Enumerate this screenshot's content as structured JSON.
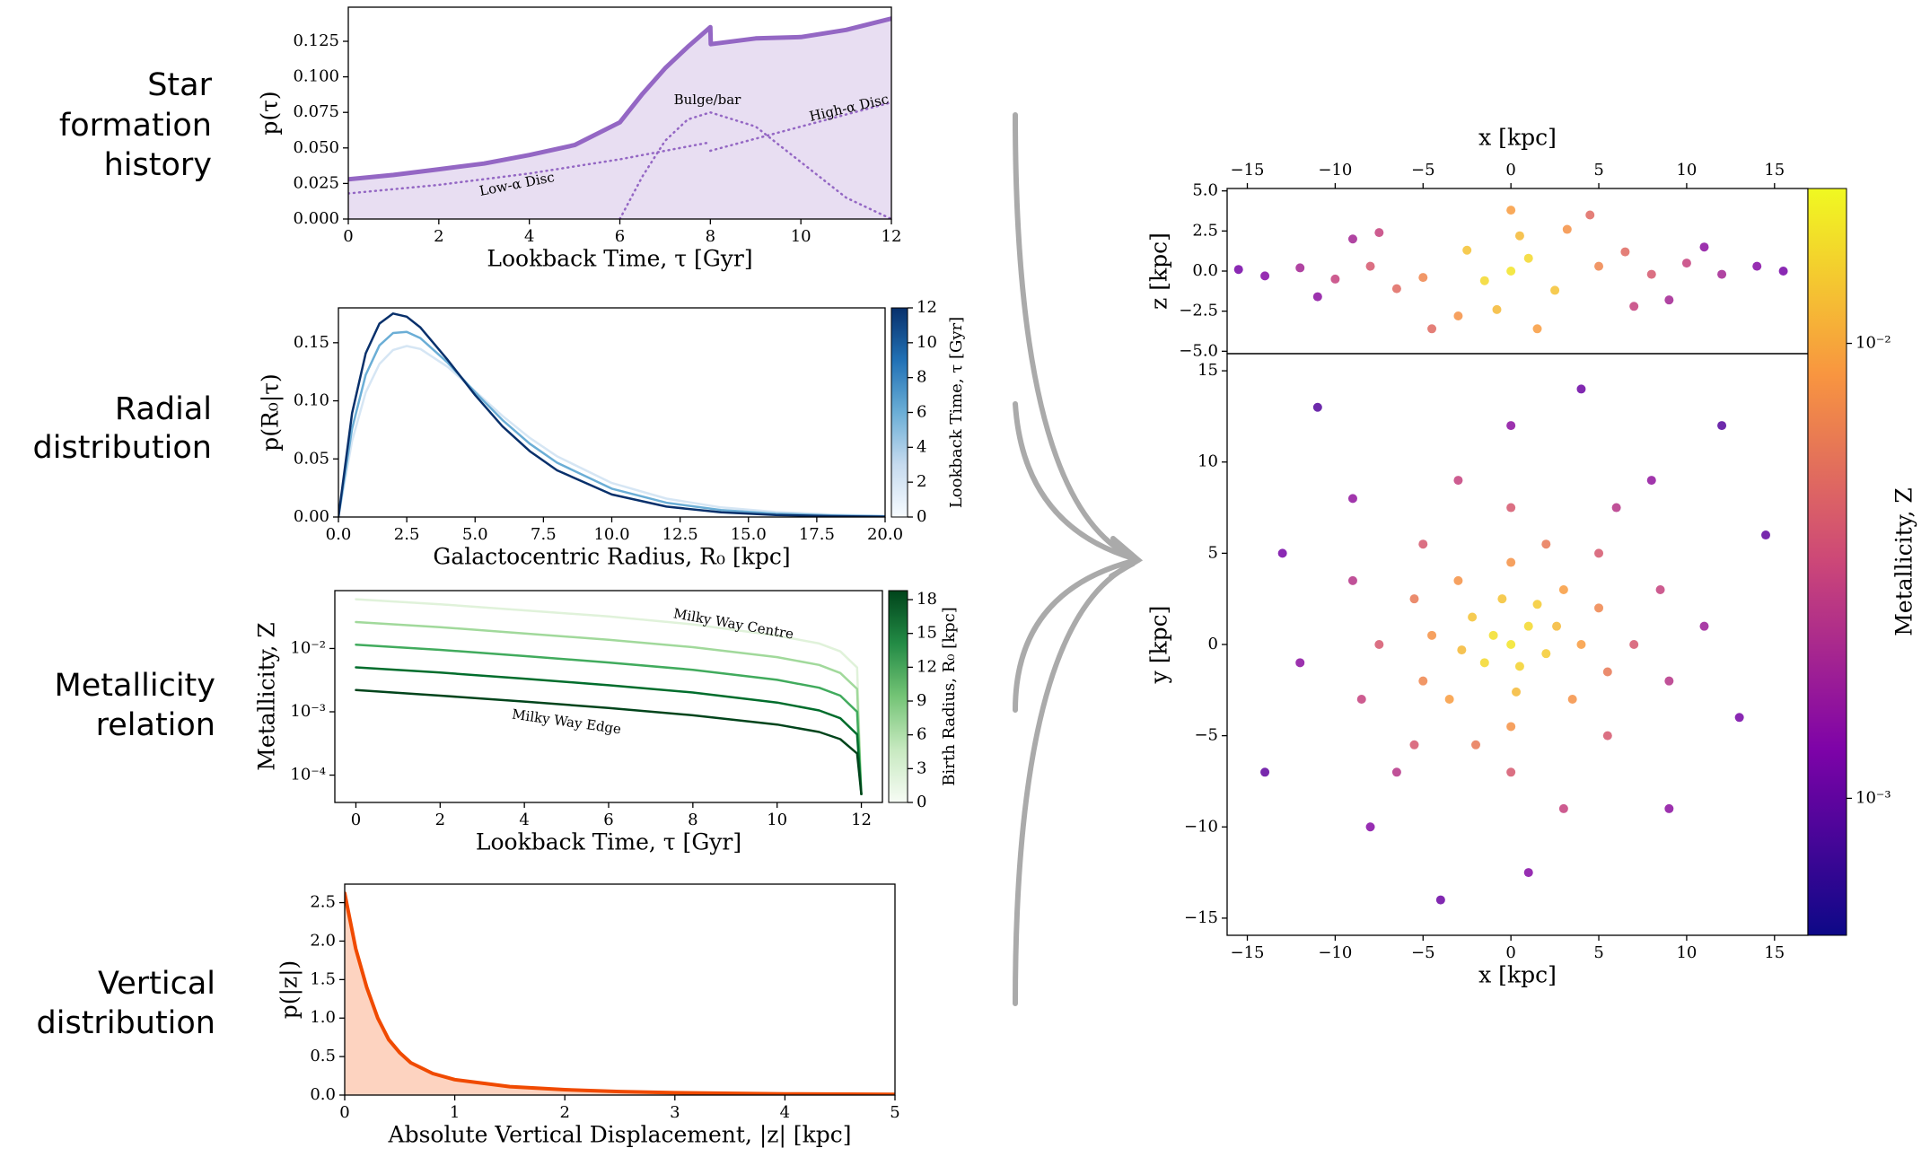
{
  "row_labels": [
    [
      "Star",
      "formation",
      "history"
    ],
    [
      "Radial",
      "distribution"
    ],
    [
      "Metallicity",
      "relation"
    ],
    [
      "Vertical",
      "distribution"
    ]
  ],
  "chart_data": [
    {
      "type": "line",
      "xlabel": "Lookback Time, τ [Gyr]",
      "ylabel": "p(τ)",
      "xlim": [
        0,
        12
      ],
      "xticks": [
        0,
        2,
        4,
        6,
        8,
        10,
        12
      ],
      "ylim": [
        0,
        0.149
      ],
      "yticks": [
        {
          "value": 0,
          "label": "0.000"
        },
        {
          "value": 0.025,
          "label": "0.025"
        },
        {
          "value": 0.05,
          "label": "0.050"
        },
        {
          "value": 0.075,
          "label": "0.075"
        },
        {
          "value": 0.1,
          "label": "0.100"
        },
        {
          "value": 0.125,
          "label": "0.125"
        }
      ],
      "annotations": [
        "Low-α Disc",
        "Bulge/bar",
        "High-α Disc"
      ],
      "series": [
        {
          "x": [
            0,
            1,
            2,
            3,
            4,
            5,
            6,
            6.5,
            7,
            7.5,
            8,
            8.01,
            9,
            10,
            11,
            12
          ],
          "values": [
            0.028,
            0.031,
            0.035,
            0.039,
            0.045,
            0.052,
            0.068,
            0.088,
            0.106,
            0.121,
            0.135,
            0.123,
            0.127,
            0.128,
            0.133,
            0.141
          ],
          "color": "#9467c4",
          "width": 5,
          "fill": "#e8def2"
        },
        {
          "x": [
            0,
            2,
            4,
            6,
            8
          ],
          "values": [
            0.018,
            0.024,
            0.032,
            0.042,
            0.054
          ],
          "color": "#9467c4",
          "width": 2.5,
          "dotted": true
        },
        {
          "x": [
            6,
            6.5,
            7,
            7.5,
            8,
            9,
            10,
            11,
            12
          ],
          "values": [
            0,
            0.03,
            0.055,
            0.07,
            0.075,
            0.065,
            0.04,
            0.015,
            0
          ],
          "color": "#9467c4",
          "width": 2.5,
          "dotted": true
        },
        {
          "x": [
            8,
            10,
            12
          ],
          "values": [
            0.048,
            0.065,
            0.082
          ],
          "color": "#9467c4",
          "width": 2.5,
          "dotted": true
        }
      ]
    },
    {
      "type": "line",
      "xlabel": "Galactocentric Radius, R₀ [kpc]",
      "ylabel": "p(R₀|τ)",
      "xlim": [
        0,
        20
      ],
      "xticks": [
        {
          "value": 0,
          "label": "0.0"
        },
        {
          "value": 2.5,
          "label": "2.5"
        },
        {
          "value": 5,
          "label": "5.0"
        },
        {
          "value": 7.5,
          "label": "7.5"
        },
        {
          "value": 10,
          "label": "10.0"
        },
        {
          "value": 12.5,
          "label": "12.5"
        },
        {
          "value": 15,
          "label": "15.0"
        },
        {
          "value": 17.5,
          "label": "17.5"
        },
        {
          "value": 20,
          "label": "20.0"
        }
      ],
      "ylim": [
        0,
        0.18
      ],
      "yticks": [
        {
          "value": 0,
          "label": "0.00"
        },
        {
          "value": 0.05,
          "label": "0.05"
        },
        {
          "value": 0.1,
          "label": "0.10"
        },
        {
          "value": 0.15,
          "label": "0.15"
        }
      ],
      "x": [
        0,
        0.5,
        1,
        1.5,
        2,
        2.5,
        3,
        4,
        5,
        6,
        7,
        8,
        10,
        12,
        14,
        16,
        18,
        20
      ],
      "series": [
        {
          "values": [
            0,
            0.0655,
            0.1072,
            0.1317,
            0.1438,
            0.1472,
            0.1446,
            0.1292,
            0.1083,
            0.0871,
            0.0681,
            0.0522,
            0.0293,
            0.0158,
            0.0083,
            0.0043,
            0.0022,
            0.0011
          ],
          "color": "#d6e6f4",
          "width": 2.5
        },
        {
          "values": [
            0,
            0.076,
            0.1224,
            0.1477,
            0.1584,
            0.1593,
            0.1539,
            0.1328,
            0.1074,
            0.0835,
            0.0631,
            0.0467,
            0.0244,
            0.0123,
            0.006,
            0.0029,
            0.0014,
            0.0006
          ],
          "color": "#6baed6",
          "width": 2.5
        },
        {
          "values": [
            0,
            0.0894,
            0.1409,
            0.1665,
            0.1751,
            0.1724,
            0.1631,
            0.1351,
            0.1049,
            0.0781,
            0.0567,
            0.0402,
            0.0194,
            0.009,
            0.004,
            0.0018,
            0.0008,
            0.0003
          ],
          "color": "#08306b",
          "width": 2.5
        }
      ],
      "colorbar": {
        "label": "Lookback Time, τ [Gyr]",
        "lim": [
          0,
          12
        ],
        "ticks": [
          0,
          2,
          4,
          6,
          8,
          10,
          12
        ],
        "cmap": "Blues"
      }
    },
    {
      "type": "line",
      "xlabel": "Lookback Time, τ [Gyr]",
      "ylabel": "Metallicity, Z",
      "ylog": true,
      "xlim": [
        -0.5,
        12.5
      ],
      "xticks": [
        0,
        2,
        4,
        6,
        8,
        10,
        12
      ],
      "ylim": [
        3.7e-05,
        0.082
      ],
      "yticks": [
        {
          "value": 0.0001,
          "label": "10⁻⁴"
        },
        {
          "value": 0.001,
          "label": "10⁻³"
        },
        {
          "value": 0.01,
          "label": "10⁻²"
        }
      ],
      "annotations": [
        "Milky Way Centre",
        "Milky Way Edge"
      ],
      "x": [
        0,
        2,
        4,
        6,
        8,
        10,
        11,
        11.5,
        11.9,
        12
      ],
      "series": [
        {
          "values": [
            0.06,
            0.05,
            0.04,
            0.032,
            0.024,
            0.016,
            0.012,
            0.009,
            0.005,
            5e-05
          ],
          "color": "#e0f2da",
          "width": 2.5
        },
        {
          "values": [
            0.0262,
            0.0217,
            0.0173,
            0.0137,
            0.0105,
            0.0073,
            0.0055,
            0.0041,
            0.0023,
            5e-05
          ],
          "color": "#a1d99b",
          "width": 2.5
        },
        {
          "values": [
            0.0115,
            0.0095,
            0.0076,
            0.006,
            0.0046,
            0.0032,
            0.0024,
            0.0018,
            0.001,
            5e-05
          ],
          "color": "#41ab5d",
          "width": 2.5
        },
        {
          "values": [
            0.00504,
            0.00417,
            0.00333,
            0.00263,
            0.00202,
            0.0014,
            0.00105,
            0.00079,
            0.00044,
            5e-05
          ],
          "color": "#006d2c",
          "width": 2.5
        },
        {
          "values": [
            0.0022,
            0.0018,
            0.00145,
            0.00115,
            0.00088,
            0.00063,
            0.00048,
            0.00037,
            0.00022,
            5e-05
          ],
          "color": "#00441b",
          "width": 2.5
        }
      ],
      "colorbar": {
        "label": "Birth Radius, R₀ [kpc]",
        "lim": [
          0,
          18.8
        ],
        "ticks": [
          0,
          3,
          6,
          9,
          12,
          15,
          18
        ],
        "cmap": "Greens"
      }
    },
    {
      "type": "line",
      "xlabel": "Absolute Vertical Displacement, |z| [kpc]",
      "ylabel": "p(|z|)",
      "xlim": [
        0,
        5
      ],
      "xticks": [
        0,
        1,
        2,
        3,
        4,
        5
      ],
      "ylim": [
        0,
        2.74
      ],
      "yticks": [
        {
          "value": 0,
          "label": "0.0"
        },
        {
          "value": 0.5,
          "label": "0.5"
        },
        {
          "value": 1,
          "label": "1.0"
        },
        {
          "value": 1.5,
          "label": "1.5"
        },
        {
          "value": 2,
          "label": "2.0"
        },
        {
          "value": 2.5,
          "label": "2.5"
        }
      ],
      "x": [
        0,
        0.1,
        0.2,
        0.3,
        0.4,
        0.5,
        0.6,
        0.8,
        1,
        1.5,
        2,
        2.5,
        3,
        4,
        5
      ],
      "series": [
        {
          "values": [
            2.62,
            1.9,
            1.4,
            1.0,
            0.72,
            0.55,
            0.42,
            0.28,
            0.2,
            0.11,
            0.07,
            0.045,
            0.03,
            0.015,
            0.008
          ],
          "color": "#f04a00",
          "width": 4,
          "fill": "#fdd3c0"
        }
      ]
    },
    {
      "type": "scatter",
      "xlabel": "x [kpc]",
      "ylabel": "z [kpc]",
      "xtick_side": "top",
      "xlim": [
        -16.15,
        16.9
      ],
      "xticks": [
        {
          "value": -15,
          "label": "−15"
        },
        {
          "value": -10,
          "label": "−10"
        },
        {
          "value": -5,
          "label": "−5"
        },
        0,
        5,
        10,
        15
      ],
      "ylim": [
        -5.15,
        5.15
      ],
      "yticks": [
        {
          "value": -5,
          "label": "−5.0"
        },
        {
          "value": -2.5,
          "label": "−2.5"
        },
        {
          "value": 0,
          "label": "0.0"
        },
        {
          "value": 2.5,
          "label": "2.5"
        },
        {
          "value": 5,
          "label": "5.0"
        }
      ],
      "x": [
        0,
        1,
        -1.5,
        0.5,
        -0.8,
        2.5,
        -2.5,
        0,
        1.5,
        -3,
        3.2,
        5,
        -5,
        6.5,
        -6.5,
        8,
        -8,
        10,
        -10,
        12,
        -12,
        14,
        -14,
        15.5,
        -15.5,
        7,
        -7.5,
        4.5,
        -4.5,
        11,
        -11,
        9,
        -9
      ],
      "y": [
        0,
        0.8,
        -0.6,
        2.2,
        -2.4,
        -1.2,
        1.3,
        3.8,
        -3.6,
        -2.8,
        2.6,
        0.3,
        -0.4,
        1.2,
        -1.1,
        -0.2,
        0.3,
        0.5,
        -0.5,
        -0.2,
        0.2,
        0.3,
        -0.3,
        0,
        0.1,
        -2.2,
        2.4,
        3.5,
        -3.6,
        1.5,
        -1.6,
        -1.8,
        2
      ],
      "color_values": [
        0.018,
        0.016,
        0.016,
        0.012,
        0.012,
        0.013,
        0.013,
        0.009,
        0.009,
        0.008,
        0.008,
        0.007,
        0.007,
        0.005,
        0.005,
        0.004,
        0.004,
        0.003,
        0.003,
        0.002,
        0.002,
        0.0014,
        0.0014,
        0.0012,
        0.0012,
        0.003,
        0.003,
        0.005,
        0.005,
        0.0015,
        0.0015,
        0.002,
        0.002
      ]
    },
    {
      "type": "scatter",
      "xlabel": "x [kpc]",
      "ylabel": "y [kpc]",
      "xlim": [
        -16.15,
        16.9
      ],
      "xticks": [
        {
          "value": -15,
          "label": "−15"
        },
        {
          "value": -10,
          "label": "−10"
        },
        {
          "value": -5,
          "label": "−5"
        },
        0,
        5,
        10,
        15
      ],
      "ylim": [
        -15.94,
        15.94
      ],
      "yticks": [
        {
          "value": -15,
          "label": "−15"
        },
        {
          "value": -10,
          "label": "−10"
        },
        {
          "value": -5,
          "label": "−5"
        },
        0,
        5,
        10,
        15
      ],
      "x": [
        0,
        1,
        -1,
        0.5,
        -1.5,
        2,
        -2.2,
        1.5,
        -0.5,
        0.3,
        2.6,
        -2.8,
        4,
        3,
        0,
        -3,
        -4.5,
        -3.5,
        0,
        3.5,
        5,
        -5,
        2,
        -2,
        5.5,
        -5.5,
        7,
        5,
        0,
        -5,
        -7.5,
        -5.5,
        0,
        5.5,
        8.5,
        -8.5,
        3,
        -3,
        9,
        -9,
        6,
        -6.5,
        11,
        8,
        0,
        -9,
        -12,
        -8,
        1,
        9,
        13,
        -13,
        4,
        -4,
        14.5,
        -14,
        12,
        -11
      ],
      "y": [
        0,
        1,
        0.5,
        -1.2,
        -1,
        -0.5,
        1.5,
        2.2,
        2.5,
        -2.6,
        1,
        -0.3,
        0,
        3,
        4.5,
        3.5,
        0.5,
        -3,
        -4.5,
        -3,
        2,
        -2,
        5.5,
        -5.5,
        -1.5,
        2.5,
        0,
        5,
        7.5,
        5.5,
        0,
        -5.5,
        -7,
        -5,
        3,
        -3,
        -9,
        9,
        -2,
        3.5,
        7.5,
        -7,
        1,
        9,
        12,
        8,
        -1,
        -10,
        -12.5,
        -9,
        -4,
        5,
        14,
        -14,
        6,
        -7,
        12,
        13
      ],
      "color_values": [
        0.018,
        0.016,
        0.017,
        0.015,
        0.016,
        0.014,
        0.013,
        0.014,
        0.013,
        0.012,
        0.012,
        0.012,
        0.009,
        0.009,
        0.008,
        0.008,
        0.008,
        0.009,
        0.008,
        0.008,
        0.007,
        0.007,
        0.006,
        0.006,
        0.006,
        0.006,
        0.004,
        0.004,
        0.004,
        0.004,
        0.004,
        0.004,
        0.004,
        0.004,
        0.003,
        0.003,
        0.003,
        0.003,
        0.0025,
        0.0025,
        0.0025,
        0.0025,
        0.0018,
        0.0016,
        0.0015,
        0.0016,
        0.0015,
        0.0014,
        0.0014,
        0.0015,
        0.0012,
        0.0012,
        0.0011,
        0.0011,
        0.001,
        0.001,
        0.0009,
        0.0009
      ],
      "colorbar": {
        "label": "Metallicity, Z",
        "log": true,
        "lim": [
          0.0005,
          0.0219
        ],
        "ticks": [
          {
            "value": 0.001,
            "label": "10⁻³"
          },
          {
            "value": 0.01,
            "label": "10⁻²"
          }
        ],
        "cmap": "plasma"
      }
    }
  ]
}
